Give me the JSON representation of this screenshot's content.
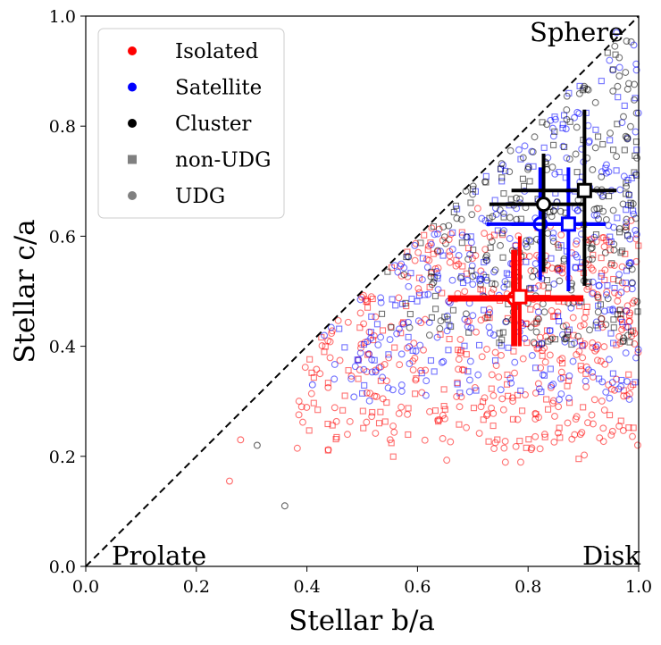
{
  "chart_data": {
    "type": "scatter",
    "xlabel": "Stellar b/a",
    "ylabel": "Stellar c/a",
    "xlim": [
      0.0,
      1.0
    ],
    "ylim": [
      0.0,
      1.0
    ],
    "xticks": [
      "0.0",
      "0.2",
      "0.4",
      "0.6",
      "0.8",
      "1.0"
    ],
    "yticks": [
      "0.0",
      "0.2",
      "0.4",
      "0.6",
      "0.8",
      "1.0"
    ],
    "grid": false,
    "diagonal_line": {
      "style": "dashed",
      "from": [
        0,
        0
      ],
      "to": [
        1,
        1
      ],
      "color": "#000000"
    },
    "corner_labels": {
      "sphere": "Sphere",
      "prolate": "Prolate",
      "disk": "Disk"
    },
    "legend": {
      "placement": "top-left",
      "entries": [
        {
          "label": "Isolated",
          "marker": "circle",
          "color": "#ff0000"
        },
        {
          "label": "Satellite",
          "marker": "circle",
          "color": "#0000ff"
        },
        {
          "label": "Cluster",
          "marker": "circle",
          "color": "#000000"
        },
        {
          "label": "non-UDG",
          "marker": "square",
          "color": "#808080"
        },
        {
          "label": "UDG",
          "marker": "circle",
          "color": "#808080"
        }
      ]
    },
    "colors": {
      "isolated": "#ff0000",
      "satellite": "#0000ff",
      "cluster": "#000000"
    },
    "summary_points": [
      {
        "group": "Isolated",
        "kind": "UDG",
        "x": 0.775,
        "y": 0.487,
        "x_err": [
          0.655,
          0.9
        ],
        "y_err": [
          0.4,
          0.575
        ],
        "color": "#ff0000",
        "lw": 7
      },
      {
        "group": "Isolated",
        "kind": "non-UDG",
        "x": 0.785,
        "y": 0.49,
        "x_err": [
          0.73,
          0.84
        ],
        "y_err": [
          0.4,
          0.6
        ],
        "color": "#ff0000",
        "lw": 4
      },
      {
        "group": "Satellite",
        "kind": "UDG",
        "x": 0.822,
        "y": 0.622,
        "x_err": [
          0.725,
          0.94
        ],
        "y_err": [
          0.52,
          0.725
        ],
        "color": "#0000ff",
        "lw": 4
      },
      {
        "group": "Satellite",
        "kind": "non-UDG",
        "x": 0.873,
        "y": 0.622,
        "x_err": [
          0.77,
          0.94
        ],
        "y_err": [
          0.5,
          0.725
        ],
        "color": "#0000ff",
        "lw": 4
      },
      {
        "group": "Cluster",
        "kind": "UDG",
        "x": 0.828,
        "y": 0.658,
        "x_err": [
          0.73,
          0.9
        ],
        "y_err": [
          0.535,
          0.75
        ],
        "color": "#000000",
        "lw": 4
      },
      {
        "group": "Cluster",
        "kind": "non-UDG",
        "x": 0.902,
        "y": 0.683,
        "x_err": [
          0.77,
          0.96
        ],
        "y_err": [
          0.51,
          0.83
        ],
        "color": "#000000",
        "lw": 4
      }
    ],
    "scatter_summary": {
      "isolated": {
        "n": 500,
        "x_range": [
          0.26,
          1.0
        ],
        "y_range": [
          0.15,
          0.62
        ]
      },
      "satellite": {
        "n": 380,
        "x_range": [
          0.4,
          1.0
        ],
        "y_range": [
          0.22,
          0.97
        ]
      },
      "cluster": {
        "n": 300,
        "x_range": [
          0.3,
          1.0
        ],
        "y_range": [
          0.1,
          0.97
        ]
      }
    }
  }
}
